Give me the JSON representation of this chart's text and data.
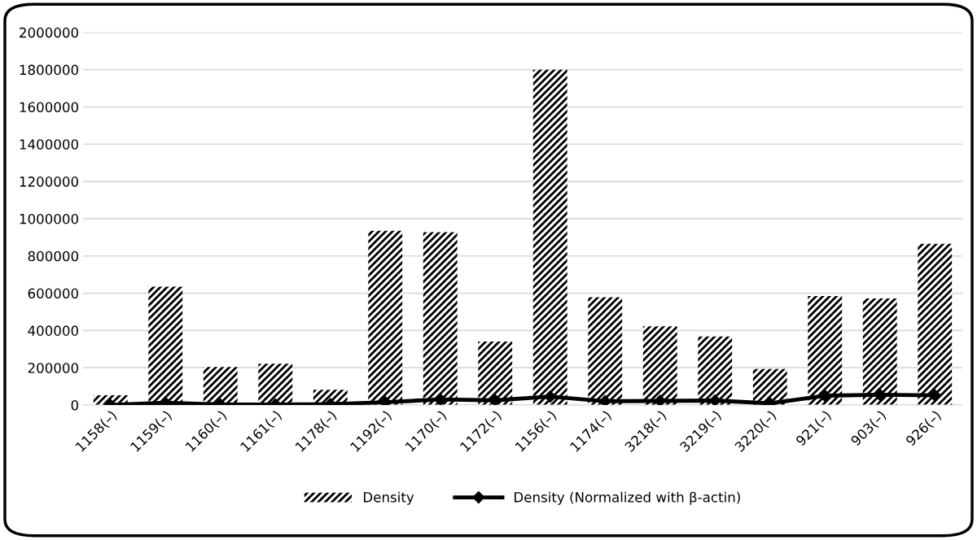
{
  "chart_data": {
    "type": "bar",
    "categories": [
      "1158(–)",
      "1159(–)",
      "1160(–)",
      "1161(–)",
      "1178(–)",
      "1192(–)",
      "1170(–)",
      "1172(–)",
      "1156(–)",
      "1174(–)",
      "3218(–)",
      "3219(–)",
      "3220(–)",
      "921(–)",
      "903(–)",
      "926(–)"
    ],
    "series": [
      {
        "name": "Density",
        "color": "#000000",
        "values": [
          52000,
          635000,
          204000,
          222000,
          82000,
          935000,
          928000,
          340000,
          1800000,
          578000,
          422000,
          368000,
          193000,
          585000,
          572000,
          865000
        ]
      },
      {
        "name": "Density (Normalized with β-actin)",
        "type": "line",
        "color": "#000000",
        "marker": "diamond",
        "values": [
          0,
          12000,
          3000,
          3000,
          5000,
          15000,
          30000,
          25000,
          45000,
          20000,
          22000,
          24000,
          9000,
          50000,
          55000,
          52000
        ]
      }
    ],
    "ylim": [
      0,
      2000000
    ],
    "yticks": [
      0,
      200000,
      400000,
      600000,
      800000,
      1000000,
      1200000,
      1400000,
      1600000,
      1800000,
      2000000
    ],
    "grid": "y",
    "legend": "bottom"
  }
}
